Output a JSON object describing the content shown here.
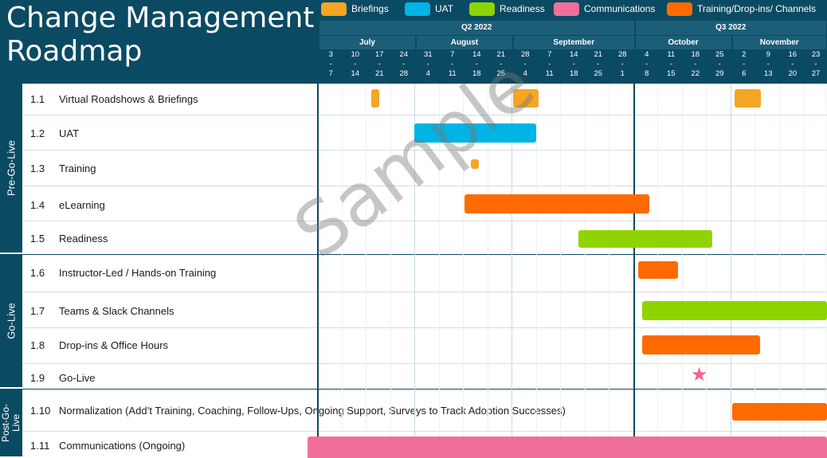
{
  "title": "Change Management Roadmap",
  "legend": [
    {
      "label": "Briefings",
      "color": "#f5a623"
    },
    {
      "label": "UAT",
      "color": "#00b4e6"
    },
    {
      "label": "Readiness",
      "color": "#8fd400"
    },
    {
      "label": "Communications",
      "color": "#f06f9a"
    },
    {
      "label": "Training/Drop-ins/ Channels",
      "color": "#ff6a00"
    }
  ],
  "quarters": [
    "Q2 2022",
    "Q3 2022"
  ],
  "months": [
    "July",
    "August",
    "September",
    "October",
    "November"
  ],
  "weeks": [
    {
      "start": "3",
      "end": "7"
    },
    {
      "start": "10",
      "end": "14"
    },
    {
      "start": "17",
      "end": "21"
    },
    {
      "start": "24",
      "end": "28"
    },
    {
      "start": "31",
      "end": "4"
    },
    {
      "start": "7",
      "end": "11"
    },
    {
      "start": "14",
      "end": "18"
    },
    {
      "start": "21",
      "end": "25"
    },
    {
      "start": "28",
      "end": "4"
    },
    {
      "start": "7",
      "end": "11"
    },
    {
      "start": "14",
      "end": "18"
    },
    {
      "start": "21",
      "end": "25"
    },
    {
      "start": "28",
      "end": "1"
    },
    {
      "start": "4",
      "end": "8"
    },
    {
      "start": "11",
      "end": "15"
    },
    {
      "start": "18",
      "end": "22"
    },
    {
      "start": "25",
      "end": "29"
    },
    {
      "start": "2",
      "end": "6"
    },
    {
      "start": "9",
      "end": "13"
    },
    {
      "start": "16",
      "end": "20"
    },
    {
      "start": "23",
      "end": "27"
    }
  ],
  "phases": [
    "Pre-Go-Live",
    "Go-Live",
    "Post-Go-Live"
  ],
  "rows": [
    {
      "num": "1.1",
      "label": "Virtual Roadshows & Briefings"
    },
    {
      "num": "1.2",
      "label": "UAT"
    },
    {
      "num": "1.3",
      "label": "Training"
    },
    {
      "num": "1.4",
      "label": "eLearning"
    },
    {
      "num": "1.5",
      "label": "Readiness"
    },
    {
      "num": "1.6",
      "label": "Instructor-Led / Hands-on Training"
    },
    {
      "num": "1.7",
      "label": "Teams & Slack Channels"
    },
    {
      "num": "1.8",
      "label": "Drop-ins & Office Hours"
    },
    {
      "num": "1.9",
      "label": "Go-Live"
    },
    {
      "num": "1.10",
      "label": "Normalization (Add’t Training, Coaching, Follow-Ups, Ongoing Support, Surveys to Track Adoption Successes)"
    },
    {
      "num": "1.11",
      "label": "Communications (Ongoing)"
    }
  ],
  "tasks": [
    {
      "row": 0,
      "start_week": 2.15,
      "end_week": 2.5,
      "category": "Briefings"
    },
    {
      "row": 0,
      "start_week": 8.0,
      "end_week": 9.05,
      "category": "Briefings"
    },
    {
      "row": 0,
      "start_week": 17.1,
      "end_week": 18.2,
      "category": "Briefings"
    },
    {
      "row": 1,
      "start_week": 3.95,
      "end_week": 8.95,
      "category": "UAT"
    },
    {
      "row": 2,
      "start_week": 6.25,
      "end_week": 6.6,
      "category": "Briefings"
    },
    {
      "row": 3,
      "start_week": 6.0,
      "end_week": 13.6,
      "category": "Training/Drop-ins/ Channels"
    },
    {
      "row": 4,
      "start_week": 10.7,
      "end_week": 16.2,
      "category": "Readiness"
    },
    {
      "row": 5,
      "start_week": 13.15,
      "end_week": 14.8,
      "category": "Training/Drop-ins/ Channels"
    },
    {
      "row": 6,
      "start_week": 13.3,
      "end_week": 21.0,
      "category": "Readiness"
    },
    {
      "row": 7,
      "start_week": 13.3,
      "end_week": 18.15,
      "category": "Training/Drop-ins/ Channels"
    },
    {
      "row": 9,
      "start_week": 17.0,
      "end_week": 21.0,
      "category": "Training/Drop-ins/ Channels"
    },
    {
      "row": 10,
      "start_week": -0.45,
      "end_week": 21.0,
      "category": "Communications"
    }
  ],
  "milestone": {
    "row": 8,
    "week": 15.7,
    "label": "Go-Live",
    "color": "#f06292"
  },
  "watermark": "Sample"
}
